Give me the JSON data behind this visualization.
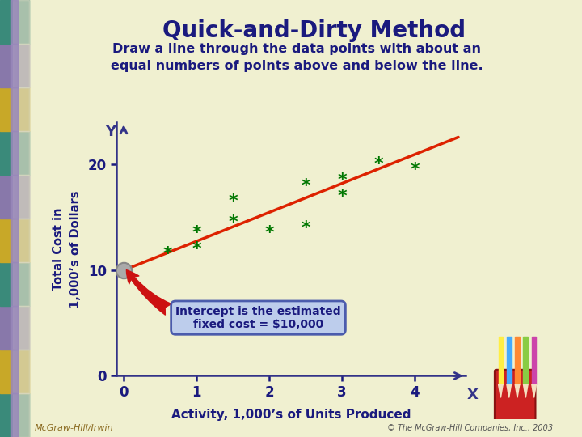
{
  "title": "Quick-and-Dirty Method",
  "subtitle_line1": "Draw a line through the data points with about an",
  "subtitle_line2": "equal numbers of points above and below the line.",
  "bg_color": "#f0f0d0",
  "subtitle_bg": "#b8ddc0",
  "subtitle_border": "#5a9a7a",
  "title_color": "#1a1a7e",
  "scatter_x": [
    0.6,
    1.0,
    1.0,
    1.5,
    1.5,
    2.0,
    2.5,
    2.5,
    3.0,
    3.0,
    3.5,
    4.0
  ],
  "scatter_y": [
    11.5,
    13.5,
    12.0,
    16.5,
    14.5,
    13.5,
    18.0,
    14.0,
    18.5,
    17.0,
    20.0,
    19.5
  ],
  "scatter_color": "#007700",
  "line_x": [
    0,
    4.6
  ],
  "line_y": [
    10,
    22.6
  ],
  "line_color": "#dd2200",
  "intercept_x": 0,
  "intercept_y": 10,
  "intercept_circle_color": "#aaaaaa",
  "xlabel": "Activity, 1,000’s of Units Produced",
  "ylabel_line1": "Total Cost in",
  "ylabel_line2": "1,000’s of Dollars",
  "xlim": [
    -0.1,
    4.7
  ],
  "ylim": [
    0,
    24
  ],
  "xticks": [
    0,
    1,
    2,
    3,
    4
  ],
  "yticks": [
    0,
    10,
    20
  ],
  "axis_label_x": "X",
  "axis_label_y": "Y",
  "annotation_text": "Intercept is the estimated\nfixed cost = $10,000",
  "annotation_bg": "#bbccee",
  "annotation_border": "#4455aa",
  "axis_color": "#333388",
  "tick_label_color": "#1a1a7e",
  "footer_left": "McGraw-Hill/Irwin",
  "footer_right": "© The McGraw-Hill Companies, Inc., 2003",
  "stripe_colors": [
    "#3a8a7a",
    "#c8a828",
    "#8878aa",
    "#3a8a7a",
    "#c8a828",
    "#8878aa",
    "#3a8a7a",
    "#c8a828",
    "#8878aa",
    "#3a8a7a"
  ]
}
